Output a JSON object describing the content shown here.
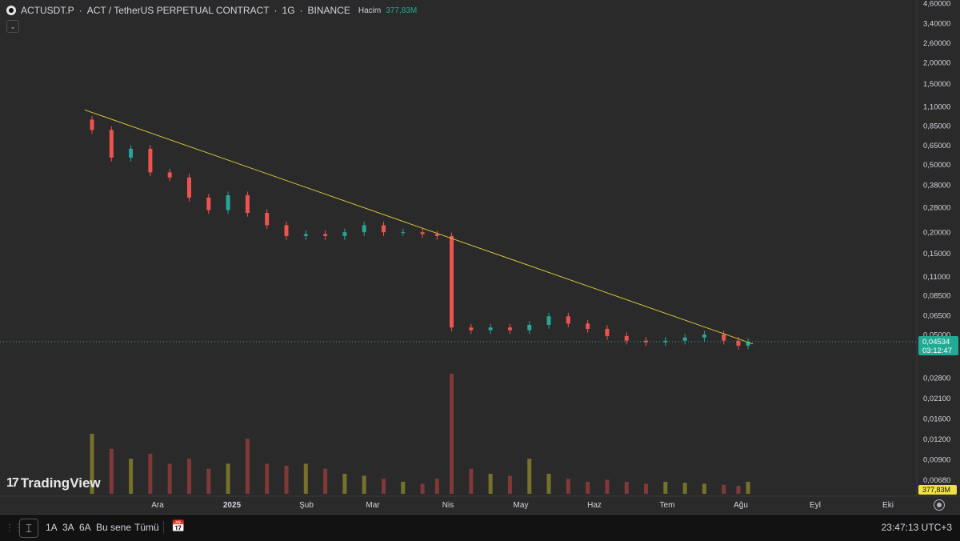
{
  "header": {
    "symbol": "ACTUSDT.P",
    "title": "ACT / TetherUS PERPETUAL CONTRACT",
    "interval": "1G",
    "exchange": "BINANCE",
    "volume_label": "Hacim",
    "volume_value": "377,83M",
    "separator": "·"
  },
  "branding": {
    "logo_mark": "17",
    "logo_text": "TradingView"
  },
  "price_axis": {
    "labels": [
      "4,60000",
      "3,40000",
      "2,60000",
      "2,00000",
      "1,50000",
      "1,10000",
      "0,85000",
      "0,65000",
      "0,50000",
      "0,38000",
      "0,28000",
      "0,20000",
      "0,15000",
      "0,11000",
      "0,08500",
      "0,06500",
      "0,05000",
      "0,02800",
      "0,02100",
      "0,01600",
      "0,01200",
      "0,00900",
      "0,00680"
    ],
    "current_price": "0,04534",
    "countdown": "03:12:47",
    "volume_tag": "377,83M"
  },
  "time_axis": {
    "labels": [
      "Ara",
      "2025",
      "Şub",
      "Mar",
      "Nis",
      "May",
      "Haz",
      "Tem",
      "Ağu",
      "Eyl",
      "Eki"
    ]
  },
  "bottom_bar": {
    "ranges": [
      "1A",
      "3A",
      "6A",
      "Bu sene",
      "Tümü"
    ],
    "clock": "23:47:13 UTC+3"
  },
  "colors": {
    "up": "#26a69a",
    "down": "#ef5350",
    "trendline": "#d4c23a",
    "price_tag": "#22ab94",
    "volume_tag": "#f0e040"
  },
  "chart_data": {
    "type": "candlestick",
    "scale": "log",
    "price_range": [
      0.006,
      4.6
    ],
    "x": [
      "2024-11-11",
      "2024-11-19",
      "2024-11-27",
      "2024-12-05",
      "2024-12-13",
      "2024-12-21",
      "2024-12-29",
      "2025-01-06",
      "2025-01-14",
      "2025-01-22",
      "2025-01-30",
      "2025-02-07",
      "2025-02-15",
      "2025-02-23",
      "2025-03-03",
      "2025-03-11",
      "2025-03-19",
      "2025-03-27",
      "2025-04-02",
      "2025-04-08",
      "2025-04-16",
      "2025-04-24",
      "2025-05-02",
      "2025-05-10",
      "2025-05-18",
      "2025-05-26",
      "2025-06-03",
      "2025-06-11",
      "2025-06-19",
      "2025-06-27",
      "2025-07-05",
      "2025-07-13",
      "2025-07-21",
      "2025-07-29",
      "2025-08-04",
      "2025-08-08"
    ],
    "close": [
      0.8,
      0.55,
      0.62,
      0.45,
      0.42,
      0.32,
      0.27,
      0.33,
      0.26,
      0.22,
      0.19,
      0.195,
      0.19,
      0.2,
      0.22,
      0.2,
      0.2,
      0.195,
      0.19,
      0.055,
      0.053,
      0.055,
      0.053,
      0.057,
      0.064,
      0.058,
      0.054,
      0.049,
      0.046,
      0.045,
      0.046,
      0.048,
      0.05,
      0.046,
      0.043,
      0.0453
    ],
    "trendline": {
      "start": [
        "2024-11-08",
        1.05
      ],
      "end": [
        "2025-08-10",
        0.044
      ]
    },
    "volume": [
      60,
      45,
      35,
      40,
      30,
      35,
      25,
      30,
      55,
      30,
      28,
      30,
      25,
      20,
      18,
      15,
      12,
      10,
      15,
      120,
      25,
      20,
      18,
      35,
      20,
      15,
      12,
      14,
      12,
      10,
      12,
      11,
      10,
      9,
      8,
      12
    ],
    "current_price": 0.04534
  }
}
